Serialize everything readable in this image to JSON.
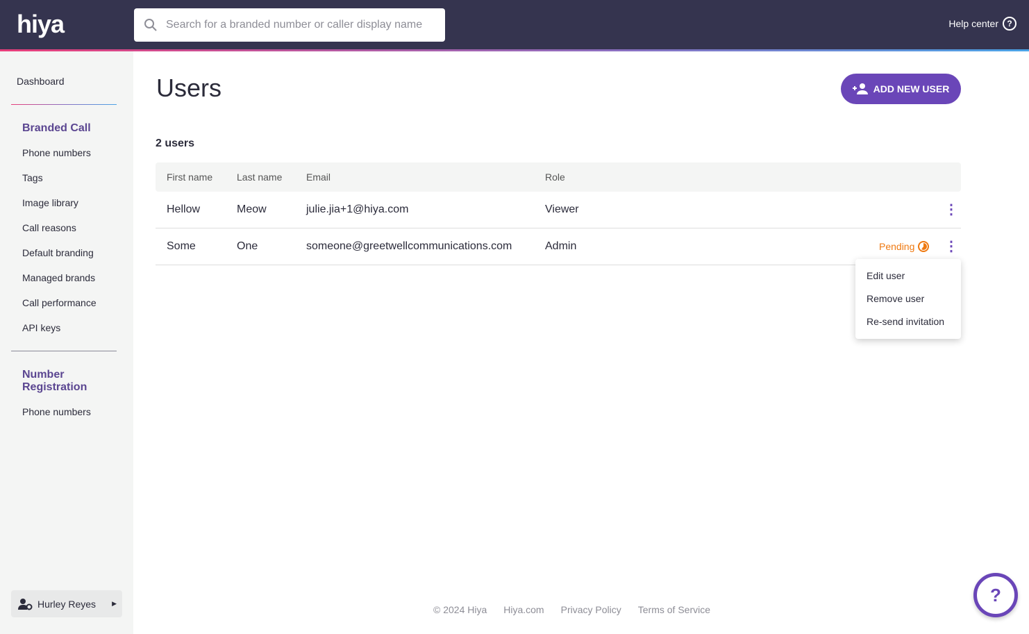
{
  "header": {
    "logo": "hiya",
    "search_placeholder": "Search for a branded number or caller display name",
    "help_label": "Help center"
  },
  "sidebar": {
    "dashboard": "Dashboard",
    "branded_call": {
      "title": "Branded Call",
      "items": [
        "Phone numbers",
        "Tags",
        "Image library",
        "Call reasons",
        "Default branding",
        "Managed brands",
        "Call performance",
        "API keys"
      ]
    },
    "number_registration": {
      "title_line1": "Number",
      "title_line2": "Registration",
      "items": [
        "Phone numbers"
      ]
    },
    "user": "Hurley Reyes"
  },
  "main": {
    "title": "Users",
    "add_button": "ADD NEW USER",
    "count": "2 users",
    "columns": [
      "First name",
      "Last name",
      "Email",
      "Role"
    ],
    "rows": [
      {
        "first": "Hellow",
        "last": "Meow",
        "email": "julie.jia+1@hiya.com",
        "role": "Viewer",
        "status": ""
      },
      {
        "first": "Some",
        "last": "One",
        "email": "someone@greetwellcommunications.com",
        "role": "Admin",
        "status": "Pending"
      }
    ],
    "menu": [
      "Edit user",
      "Remove user",
      "Re-send invitation"
    ]
  },
  "footer": {
    "copyright": "© 2024 Hiya",
    "links": [
      "Hiya.com",
      "Privacy Policy",
      "Terms of Service"
    ]
  },
  "colors": {
    "accent": "#6a46b8",
    "header": "#35344f",
    "pending": "#ef7a12"
  }
}
